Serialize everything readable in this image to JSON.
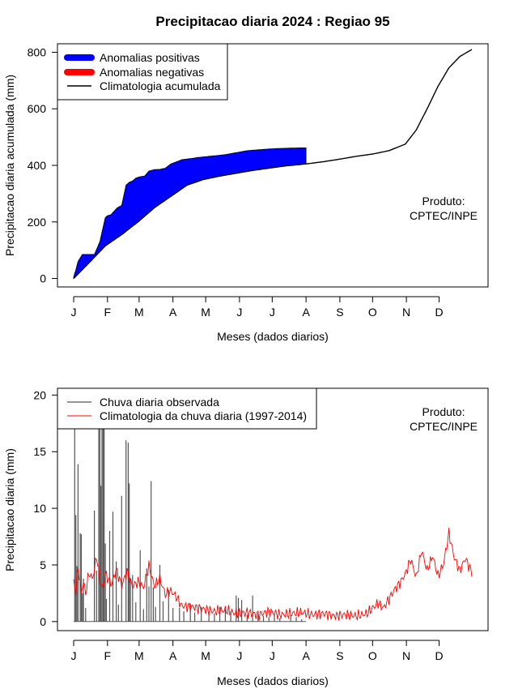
{
  "title": "Precipitacao diaria 2024 : Regiao 95",
  "chart_data": [
    {
      "type": "area",
      "ylabel": "Precipitacao diaria acumulada (mm)",
      "xlabel": "Meses (dados diarios)",
      "ylim": [
        -30,
        830
      ],
      "yticks": [
        0,
        200,
        400,
        600,
        800
      ],
      "month_labels": [
        "J",
        "F",
        "M",
        "A",
        "M",
        "J",
        "J",
        "A",
        "S",
        "O",
        "N",
        "D"
      ],
      "legend": [
        {
          "label": "Anomalias positivas",
          "color": "#0000ff"
        },
        {
          "label": "Anomalias negativas",
          "color": "#ff0000"
        },
        {
          "label": "Climatologia acumulada",
          "color": "#000000"
        }
      ],
      "annotation": [
        "Produto:",
        "CPTEC/INPE"
      ],
      "observed_cumulative": {
        "days": [
          1,
          3,
          5,
          9,
          14,
          20,
          25,
          30,
          32,
          35,
          41,
          45,
          49,
          52,
          55,
          58,
          62,
          66,
          70,
          75,
          80,
          85,
          90,
          95,
          100,
          110,
          115,
          125,
          133,
          140,
          150,
          160,
          170,
          180,
          190,
          200,
          210,
          214
        ],
        "values": [
          5,
          30,
          60,
          85,
          85,
          85,
          130,
          215,
          222,
          225,
          250,
          258,
          330,
          340,
          345,
          355,
          360,
          362,
          380,
          385,
          386,
          390,
          405,
          412,
          420,
          425,
          428,
          432,
          435,
          438,
          445,
          452,
          455,
          458,
          460,
          461,
          462,
          462
        ]
      },
      "climatology_cumulative": {
        "days": [
          1,
          15,
          30,
          45,
          60,
          75,
          90,
          105,
          120,
          135,
          150,
          165,
          180,
          195,
          214,
          230,
          245,
          260,
          275,
          290,
          305,
          315,
          325,
          335,
          345,
          355,
          366
        ],
        "values": [
          0,
          55,
          115,
          155,
          200,
          250,
          290,
          330,
          350,
          362,
          372,
          382,
          390,
          398,
          405,
          413,
          422,
          432,
          440,
          452,
          475,
          525,
          600,
          680,
          745,
          785,
          810
        ]
      }
    },
    {
      "type": "bar",
      "ylabel": "Precipitacao diaria (mm)",
      "xlabel": "Meses (dados diarios)",
      "ylim": [
        -0.8,
        20.6
      ],
      "yticks": [
        0,
        5,
        10,
        15,
        20
      ],
      "month_labels": [
        "J",
        "F",
        "M",
        "A",
        "M",
        "J",
        "J",
        "A",
        "S",
        "O",
        "N",
        "D"
      ],
      "legend": [
        {
          "label": "Chuva diaria observada",
          "color": "#000000"
        },
        {
          "label": "Climatologia da chuva diaria (1997-2014)",
          "color": "#ff0000"
        }
      ],
      "annotation": [
        "Produto:",
        "CPTEC/INPE"
      ],
      "observed_daily": {
        "days": [
          2,
          3,
          4,
          5,
          7,
          8,
          9,
          10,
          12,
          20,
          22,
          24,
          25,
          26,
          27,
          28,
          29,
          30,
          31,
          34,
          37,
          40,
          42,
          45,
          49,
          51,
          52,
          53,
          55,
          58,
          62,
          65,
          68,
          70,
          72,
          74,
          76,
          80,
          83,
          88,
          92,
          98,
          102,
          108,
          112,
          118,
          125,
          130,
          135,
          140,
          145,
          150,
          152,
          155,
          160,
          165,
          170,
          175,
          180,
          185,
          190,
          200,
          205,
          210
        ],
        "values": [
          17.8,
          9.4,
          4.9,
          13.9,
          7.8,
          7.7,
          2.5,
          3.8,
          1.2,
          9.8,
          4.5,
          17.1,
          17.4,
          12.0,
          17.6,
          17.7,
          17.4,
          6.9,
          2.0,
          8.0,
          9.7,
          5.3,
          1.5,
          11.1,
          16.0,
          15.8,
          12.2,
          3.8,
          4.1,
          1.7,
          6.3,
          1.1,
          4.7,
          3.1,
          12.4,
          3.0,
          1.3,
          5.0,
          1.8,
          2.8,
          1.2,
          1.2,
          0.9,
          1.6,
          0.8,
          1.3,
          0.6,
          0.7,
          1.3,
          1.1,
          0.9,
          2.3,
          2.1,
          1.9,
          0.6,
          2.3,
          0.7,
          0.5,
          0.4,
          0.6,
          0.3,
          0.6,
          0.4,
          0.2
        ]
      },
      "climatology_daily": {
        "days": [
          1,
          3,
          5,
          8,
          10,
          12,
          15,
          18,
          20,
          22,
          25,
          28,
          30,
          33,
          36,
          40,
          45,
          50,
          55,
          60,
          65,
          70,
          75,
          80,
          85,
          90,
          95,
          100,
          110,
          120,
          130,
          140,
          150,
          160,
          170,
          180,
          190,
          200,
          210,
          220,
          230,
          240,
          250,
          260,
          270,
          275,
          280,
          285,
          290,
          295,
          300,
          305,
          310,
          315,
          320,
          325,
          330,
          335,
          340,
          345,
          350,
          355,
          360,
          366
        ],
        "values": [
          3.5,
          2.7,
          4.8,
          2.6,
          3.5,
          2.5,
          4.3,
          3.8,
          4.5,
          5.8,
          3.6,
          2.9,
          4.2,
          3.7,
          3.3,
          4.6,
          3.2,
          4.4,
          3.1,
          3.5,
          3.0,
          4.9,
          3.1,
          3.8,
          2.4,
          2.7,
          2.2,
          1.4,
          1.3,
          1.1,
          0.9,
          1.0,
          0.7,
          0.8,
          0.6,
          0.9,
          0.6,
          0.7,
          0.8,
          0.6,
          0.7,
          0.5,
          0.6,
          0.5,
          0.7,
          1.2,
          1.6,
          1.2,
          2.0,
          2.8,
          3.4,
          4.2,
          5.5,
          3.9,
          6.3,
          4.5,
          5.8,
          4.0,
          5.1,
          7.8,
          5.6,
          4.5,
          5.6,
          4.3
        ]
      }
    }
  ]
}
